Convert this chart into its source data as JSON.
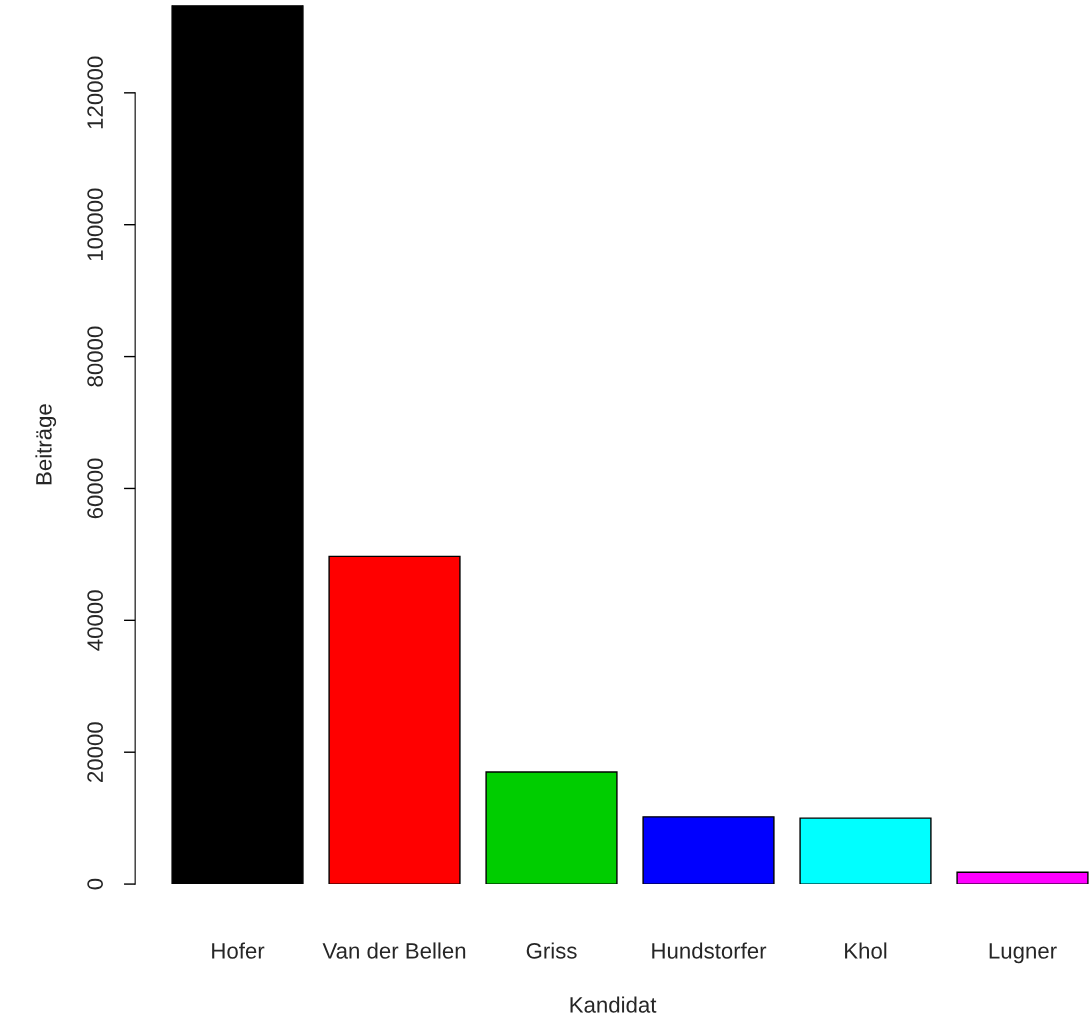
{
  "chart_data": {
    "type": "bar",
    "xlabel": "Kandidat",
    "ylabel": "Beiträge",
    "categories": [
      "Hofer",
      "Van der Bellen",
      "Griss",
      "Hundstorfer",
      "Khol",
      "Lugner"
    ],
    "values": [
      133300,
      49700,
      17000,
      10200,
      10000,
      1800
    ],
    "colors": [
      "#000000",
      "#ff0000",
      "#00cd00",
      "#0000ff",
      "#00ffff",
      "#ff00ff"
    ],
    "ylim": [
      0,
      133300
    ],
    "yticks": [
      0,
      20000,
      40000,
      60000,
      80000,
      100000,
      120000
    ],
    "grid": false
  }
}
